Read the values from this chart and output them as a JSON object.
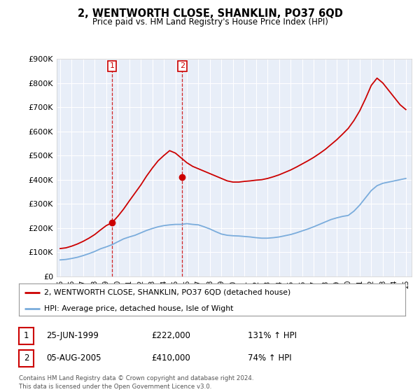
{
  "title": "2, WENTWORTH CLOSE, SHANKLIN, PO37 6QD",
  "subtitle": "Price paid vs. HM Land Registry's House Price Index (HPI)",
  "legend_line1": "2, WENTWORTH CLOSE, SHANKLIN, PO37 6QD (detached house)",
  "legend_line2": "HPI: Average price, detached house, Isle of Wight",
  "sale1_label": "1",
  "sale1_date": "25-JUN-1999",
  "sale1_price": "£222,000",
  "sale1_hpi": "131% ↑ HPI",
  "sale2_label": "2",
  "sale2_date": "05-AUG-2005",
  "sale2_price": "£410,000",
  "sale2_hpi": "74% ↑ HPI",
  "footer": "Contains HM Land Registry data © Crown copyright and database right 2024.\nThis data is licensed under the Open Government Licence v3.0.",
  "red_line_color": "#cc0000",
  "blue_line_color": "#7aacdc",
  "marker_color": "#cc0000",
  "vline_color": "#cc0000",
  "background_color": "#ffffff",
  "plot_bg_color": "#e8eef8",
  "grid_color": "#ffffff",
  "ylim": [
    0,
    900000
  ],
  "yticks": [
    0,
    100000,
    200000,
    300000,
    400000,
    500000,
    600000,
    700000,
    800000,
    900000
  ],
  "sale1_x": 1999.5,
  "sale1_price_val": 222000,
  "sale2_x": 2005.6,
  "sale2_price_val": 410000,
  "hpi_years": [
    1995,
    1995.5,
    1996,
    1996.5,
    1997,
    1997.5,
    1998,
    1998.5,
    1999,
    1999.5,
    2000,
    2000.5,
    2001,
    2001.5,
    2002,
    2002.5,
    2003,
    2003.5,
    2004,
    2004.5,
    2005,
    2005.5,
    2006,
    2006.5,
    2007,
    2007.5,
    2008,
    2008.5,
    2009,
    2009.5,
    2010,
    2010.5,
    2011,
    2011.5,
    2012,
    2012.5,
    2013,
    2013.5,
    2014,
    2014.5,
    2015,
    2015.5,
    2016,
    2016.5,
    2017,
    2017.5,
    2018,
    2018.5,
    2019,
    2019.5,
    2020,
    2020.5,
    2021,
    2021.5,
    2022,
    2022.5,
    2023,
    2023.5,
    2024,
    2024.5,
    2025
  ],
  "hpi_values": [
    68000,
    70000,
    74000,
    79000,
    86000,
    94000,
    103000,
    114000,
    122000,
    131000,
    143000,
    155000,
    163000,
    170000,
    180000,
    190000,
    198000,
    205000,
    210000,
    213000,
    215000,
    215000,
    218000,
    215000,
    213000,
    205000,
    196000,
    185000,
    175000,
    170000,
    168000,
    167000,
    165000,
    163000,
    160000,
    158000,
    158000,
    160000,
    163000,
    168000,
    173000,
    180000,
    188000,
    196000,
    205000,
    215000,
    225000,
    235000,
    242000,
    248000,
    252000,
    270000,
    295000,
    325000,
    355000,
    375000,
    385000,
    390000,
    395000,
    400000,
    405000
  ],
  "red_years": [
    1995,
    1995.5,
    1996,
    1996.5,
    1997,
    1997.5,
    1998,
    1998.5,
    1999,
    1999.5,
    2000,
    2000.5,
    2001,
    2001.5,
    2002,
    2002.5,
    2003,
    2003.5,
    2004,
    2004.5,
    2005,
    2005.5,
    2006,
    2006.5,
    2007,
    2007.5,
    2008,
    2008.5,
    2009,
    2009.5,
    2010,
    2010.5,
    2011,
    2011.5,
    2012,
    2012.5,
    2013,
    2013.5,
    2014,
    2014.5,
    2015,
    2015.5,
    2016,
    2016.5,
    2017,
    2017.5,
    2018,
    2018.5,
    2019,
    2019.5,
    2020,
    2020.5,
    2021,
    2021.5,
    2022,
    2022.5,
    2023,
    2023.5,
    2024,
    2024.5,
    2025
  ],
  "red_values": [
    115000,
    118000,
    125000,
    134000,
    145000,
    158000,
    173000,
    192000,
    210000,
    222000,
    248000,
    278000,
    312000,
    345000,
    378000,
    415000,
    448000,
    478000,
    500000,
    520000,
    510000,
    490000,
    470000,
    455000,
    445000,
    435000,
    425000,
    415000,
    405000,
    395000,
    390000,
    390000,
    393000,
    395000,
    398000,
    400000,
    405000,
    412000,
    420000,
    430000,
    440000,
    452000,
    465000,
    478000,
    492000,
    508000,
    525000,
    545000,
    565000,
    588000,
    612000,
    645000,
    685000,
    735000,
    790000,
    820000,
    800000,
    770000,
    740000,
    710000,
    690000
  ]
}
